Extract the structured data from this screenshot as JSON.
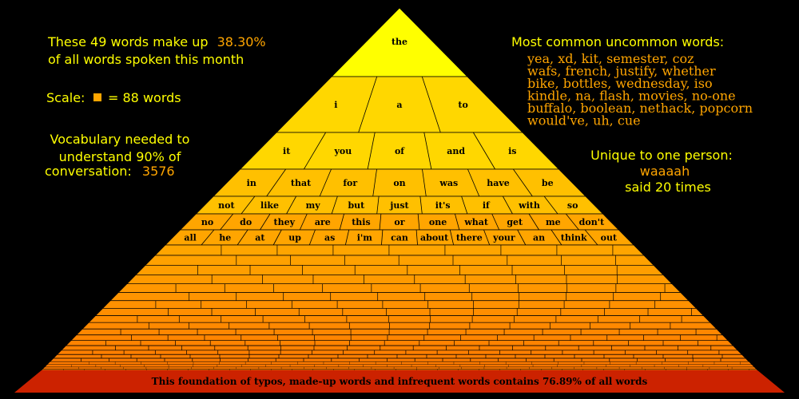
{
  "left": {
    "line1_text": "These 49 words make up",
    "line1_value": "38.30%",
    "line2": "of all words spoken this month",
    "scale_prefix": "Scale:",
    "scale_suffix": "= 88 words",
    "vocab_line1": "Vocabulary needed to",
    "vocab_line2": "understand 90% of",
    "vocab_line3_text": "conversation:",
    "vocab_line3_value": "3576"
  },
  "right": {
    "title": "Most common uncommon words:",
    "lines": [
      "yea, xd, kit, semester, coz",
      "wafs, french, justify, whether",
      "bike, bottles, wednesday, iso",
      "kindle, na, flash, movies, no-one",
      "buffalo, boolean, nethack, popcorn",
      "would've, uh, cue"
    ],
    "unique_title": "Unique to one person:",
    "unique_word": "waaaah",
    "unique_said": "said 20 times"
  },
  "pyramid_rows": [
    [
      "the"
    ],
    [
      "i",
      "a",
      "to"
    ],
    [
      "it",
      "you",
      "of",
      "and",
      "is"
    ],
    [
      "in",
      "that",
      "for",
      "on",
      "was",
      "have",
      "be"
    ],
    [
      "not",
      "like",
      "my",
      "but",
      "just",
      "it's",
      "if",
      "with",
      "so"
    ],
    [
      "no",
      "do",
      "they",
      "are",
      "this",
      "or",
      "one",
      "what",
      "get",
      "me",
      "don't"
    ],
    [
      "all",
      "he",
      "at",
      "up",
      "as",
      "i'm",
      "can",
      "about",
      "there",
      "your",
      "an",
      "think",
      "out"
    ]
  ],
  "foundation_text": "This foundation of typos, made-up words and infrequent words contains 76.89% of all words",
  "colors": {
    "top": "#ffff00",
    "upper": "#ffd700",
    "mid": "#ffc000",
    "lower": "#ffa500",
    "bottom": "#ff8c00",
    "foundation": "#cc2200",
    "label_yellow": "#ffff00",
    "label_orange": "#ffa500"
  }
}
